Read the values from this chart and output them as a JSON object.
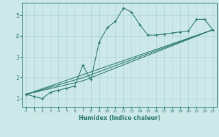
{
  "xlabel": "Humidex (Indice chaleur)",
  "ylabel": "",
  "bg_color": "#cce8e8",
  "line_color": "#2d7a6e",
  "grid_color": "#b0d8d8",
  "xlim": [
    -0.5,
    23.5
  ],
  "ylim": [
    0.6,
    5.6
  ],
  "yticks": [
    1,
    2,
    3,
    4,
    5
  ],
  "xticks": [
    0,
    1,
    2,
    3,
    4,
    5,
    6,
    7,
    8,
    9,
    10,
    11,
    12,
    13,
    14,
    15,
    16,
    17,
    18,
    19,
    20,
    21,
    22,
    23
  ],
  "series1_x": [
    0,
    1,
    2,
    3,
    4,
    5,
    6,
    7,
    8,
    9,
    10,
    11,
    12,
    13,
    14,
    15,
    16,
    17,
    18,
    19,
    20,
    21,
    22,
    23
  ],
  "series1_y": [
    1.2,
    1.1,
    1.0,
    1.3,
    1.4,
    1.5,
    1.6,
    2.6,
    1.9,
    3.7,
    4.4,
    4.7,
    5.35,
    5.15,
    4.55,
    4.05,
    4.05,
    4.1,
    4.15,
    4.2,
    4.25,
    4.8,
    4.8,
    4.3
  ],
  "series2_x": [
    0,
    23
  ],
  "series2_y": [
    1.2,
    4.3
  ],
  "series3_x": [
    0,
    7,
    23
  ],
  "series3_y": [
    1.2,
    1.85,
    4.3
  ],
  "series4_x": [
    0,
    7,
    23
  ],
  "series4_y": [
    1.2,
    2.0,
    4.3
  ]
}
